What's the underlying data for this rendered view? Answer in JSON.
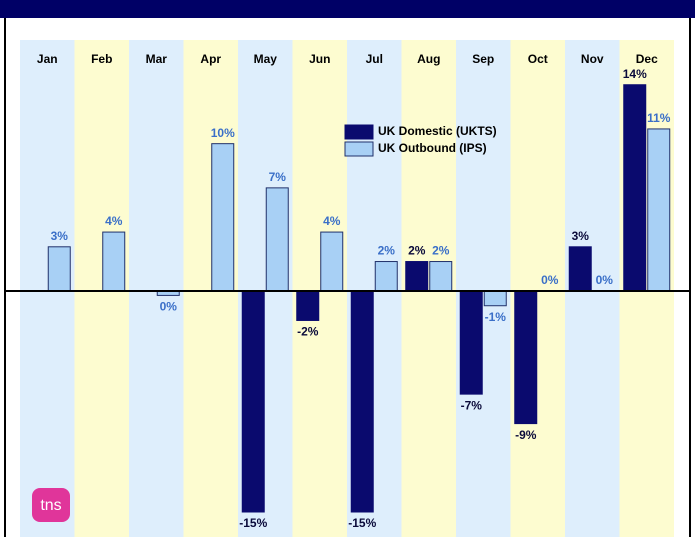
{
  "chart_data": {
    "type": "bar",
    "categories": [
      "Jan",
      "Feb",
      "Mar",
      "Apr",
      "May",
      "Jun",
      "Jul",
      "Aug",
      "Sep",
      "Oct",
      "Nov",
      "Dec"
    ],
    "series": [
      {
        "name": "UK Domestic (UKTS)",
        "color": "#0a0a6e",
        "values": [
          null,
          null,
          null,
          null,
          -15,
          -2,
          -15,
          2,
          -7,
          -9,
          3,
          14
        ],
        "value_labels": [
          null,
          null,
          null,
          null,
          "-15%",
          "-2%",
          "-15%",
          "2%",
          "-7%",
          "-9%",
          "3%",
          "14%"
        ]
      },
      {
        "name": "UK Outbound (IPS)",
        "color": "#a8d0f5",
        "values": [
          3,
          4,
          -0.3,
          10,
          7,
          4,
          2,
          2,
          -1,
          0,
          0,
          11
        ],
        "value_labels": [
          "3%",
          "4%",
          "0%",
          "10%",
          "7%",
          "4%",
          "2%",
          "2%",
          "-1%",
          "0%",
          "0%",
          "11%"
        ]
      }
    ],
    "ylim": [
      -15,
      15
    ],
    "legend": "upper center",
    "logo": "tns"
  }
}
